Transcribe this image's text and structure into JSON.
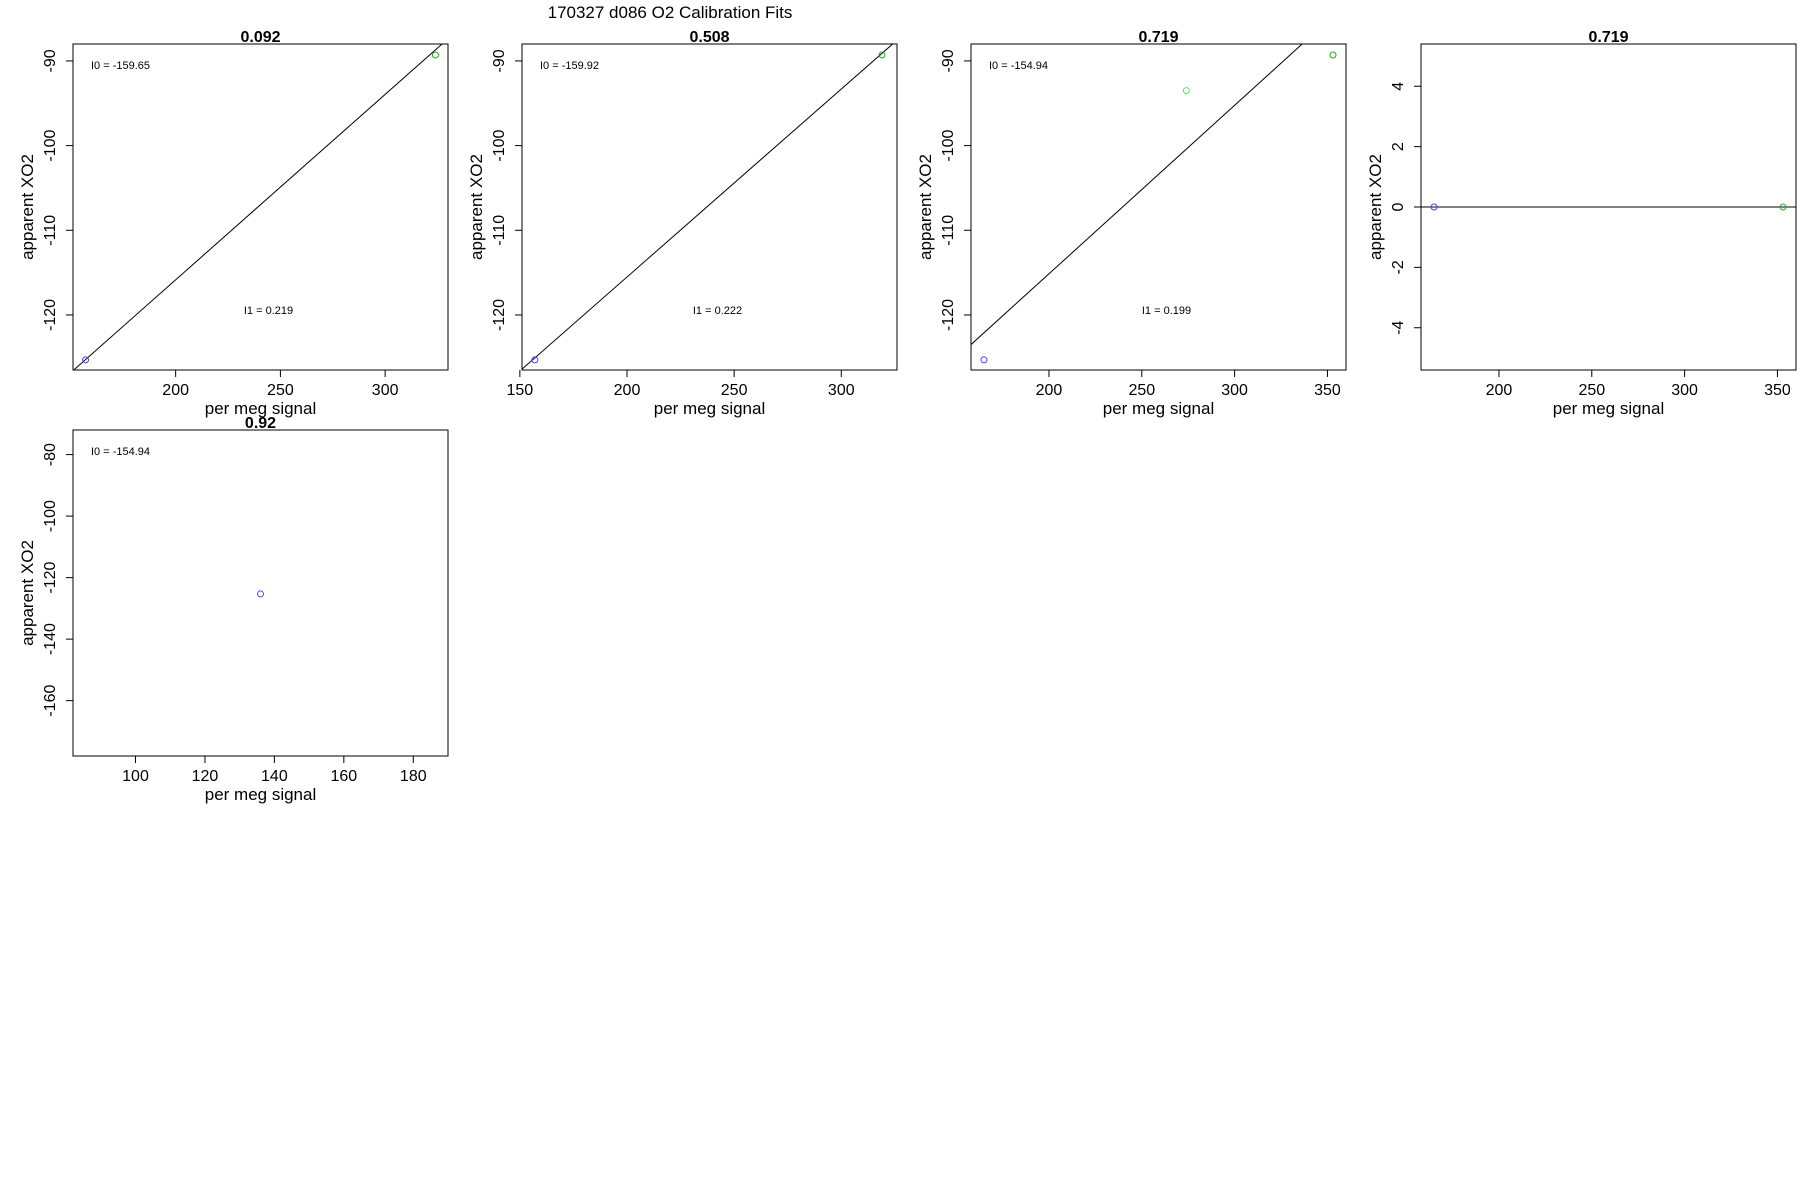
{
  "figure_title": "170327   d086   O2 Calibration Fits",
  "chart_data": [
    {
      "type": "scatter",
      "title": "0.092",
      "xlabel": "per meg signal",
      "ylabel": "apparent XO2",
      "xlim": [
        151,
        330
      ],
      "ylim": [
        -126.5,
        -88
      ],
      "xticks": [
        200,
        250,
        300
      ],
      "yticks": [
        -90,
        -100,
        -110,
        -120
      ],
      "points": [
        {
          "x": 157,
          "y": -125.3,
          "color": "#4444ff"
        },
        {
          "x": 324,
          "y": -89.3,
          "color": "#22aa22"
        }
      ],
      "fit_line": {
        "intercept": -159.65,
        "slope": 0.219
      },
      "annotations": {
        "I0": "I0 =  -159.65",
        "I1": "I1 =  0.219"
      }
    },
    {
      "type": "scatter",
      "title": "0.508",
      "xlabel": "per meg signal",
      "ylabel": "apparent XO2",
      "xlim": [
        151,
        326
      ],
      "ylim": [
        -126.5,
        -88
      ],
      "xticks": [
        150,
        200,
        250,
        300
      ],
      "yticks": [
        -90,
        -100,
        -110,
        -120
      ],
      "points": [
        {
          "x": 157,
          "y": -125.3,
          "color": "#4444ff"
        },
        {
          "x": 319,
          "y": -89.3,
          "color": "#22aa22"
        }
      ],
      "fit_line": {
        "intercept": -159.92,
        "slope": 0.222
      },
      "annotations": {
        "I0": "I0 =  -159.92",
        "I1": "I1 =  0.222"
      }
    },
    {
      "type": "scatter",
      "title": "0.719",
      "xlabel": "per meg signal",
      "ylabel": "apparent XO2",
      "xlim": [
        158,
        360
      ],
      "ylim": [
        -126.5,
        -88
      ],
      "xticks": [
        200,
        250,
        300,
        350
      ],
      "yticks": [
        -90,
        -100,
        -110,
        -120
      ],
      "points": [
        {
          "x": 165,
          "y": -125.3,
          "color": "#4444ff"
        },
        {
          "x": 274,
          "y": -93.5,
          "color": "#55ee55"
        },
        {
          "x": 353,
          "y": -89.3,
          "color": "#22aa22"
        }
      ],
      "fit_line": {
        "intercept": -154.94,
        "slope": 0.199
      },
      "annotations": {
        "I0": "I0 =  -154.94",
        "I1": "I1 =  0.199"
      }
    },
    {
      "type": "scatter",
      "title": "0.719",
      "xlabel": "per meg signal",
      "ylabel": "apparent XO2",
      "xlim": [
        158,
        360
      ],
      "ylim": [
        -5.4,
        5.4
      ],
      "xticks": [
        200,
        250,
        300,
        350
      ],
      "yticks": [
        4,
        2,
        0,
        -2,
        -4
      ],
      "points": [
        {
          "x": 165,
          "y": 0,
          "color": "#4444ff"
        },
        {
          "x": 353,
          "y": 0,
          "color": "#22aa22"
        }
      ],
      "fit_line": {
        "intercept": 0,
        "slope": 0
      },
      "annotations": {}
    },
    {
      "type": "scatter",
      "title": "0.92",
      "xlabel": "per meg signal",
      "ylabel": "apparent XO2",
      "xlim": [
        82,
        190
      ],
      "ylim": [
        -178,
        -72
      ],
      "xticks": [
        100,
        120,
        140,
        160,
        180
      ],
      "yticks": [
        -80,
        -100,
        -120,
        -140,
        -160
      ],
      "points": [
        {
          "x": 136,
          "y": -125.3,
          "color": "#4444ff"
        }
      ],
      "fit_line": null,
      "annotations": {
        "I0": "I0 =  -154.94"
      }
    }
  ]
}
